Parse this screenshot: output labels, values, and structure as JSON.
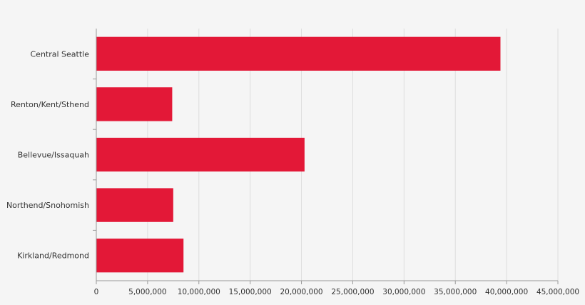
{
  "chart_data": {
    "type": "bar",
    "orientation": "horizontal",
    "categories": [
      "Central Seattle",
      "Renton/Kent/Sthend",
      "Bellevue/Issaquah",
      "Northend/Snohomish",
      "Kirkland/Redmond"
    ],
    "values": [
      39400000,
      7400000,
      20300000,
      7500000,
      8500000
    ],
    "x_ticks": [
      "0",
      "5,000,000",
      "10,000,000",
      "15,000,000",
      "20,000,000",
      "25,000,000",
      "30,000,000",
      "35,000,000",
      "40,000,000",
      "45,000,000"
    ],
    "xlim": [
      0,
      45000000
    ],
    "title": "",
    "xlabel": "",
    "ylabel": "",
    "grid": "vertical",
    "legend": "none",
    "colors": {
      "bar": "#e31837",
      "grid": "#dddddd",
      "axis": "#999999",
      "background": "#f5f5f5",
      "text": "#333333"
    }
  }
}
